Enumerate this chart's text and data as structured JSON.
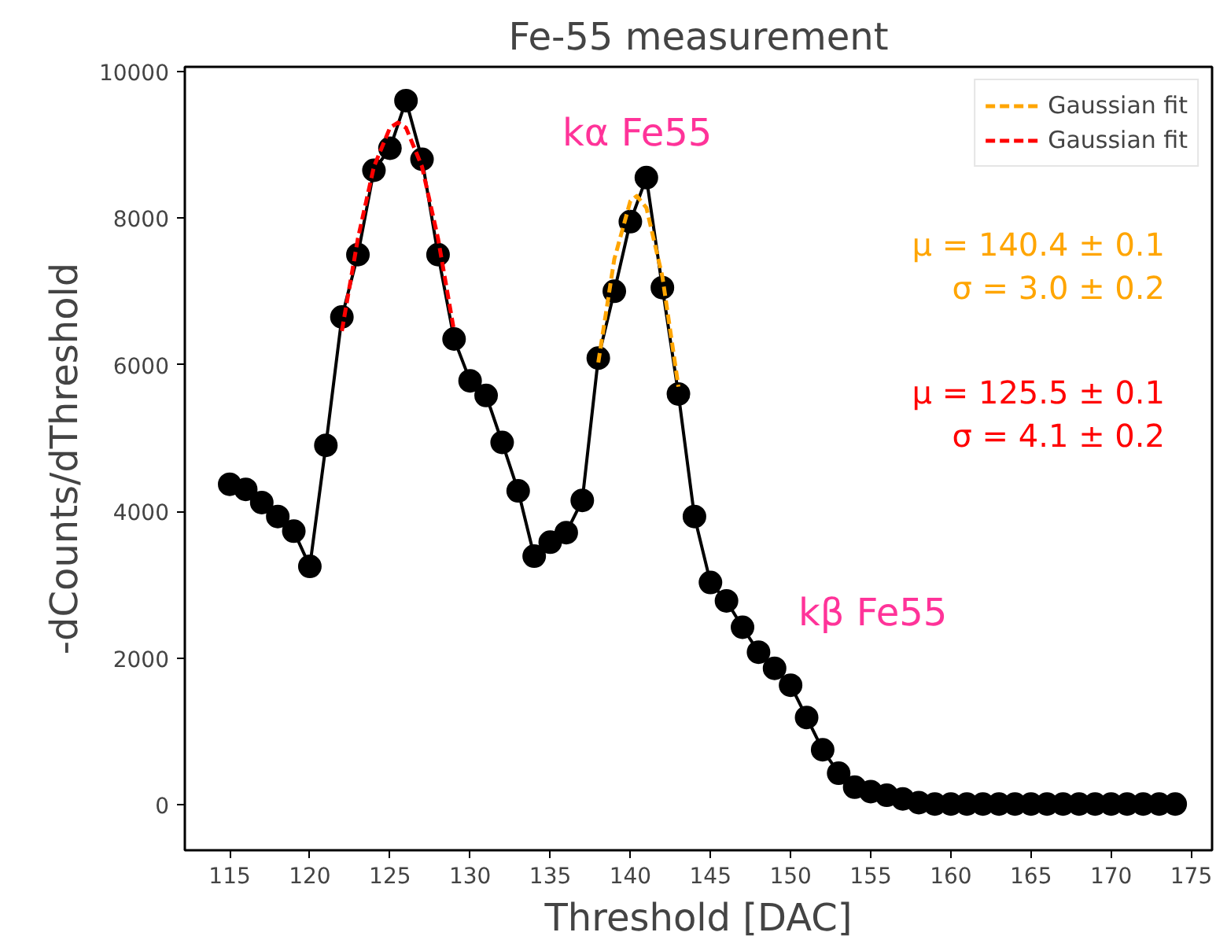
{
  "chart_data": {
    "type": "line",
    "title": "Fe-55 measurement",
    "xlabel": "Threshold [DAC]",
    "ylabel": "-dCounts/dThreshold",
    "x": [
      115,
      116,
      117,
      118,
      119,
      120,
      121,
      122,
      123,
      124,
      125,
      126,
      127,
      128,
      129,
      130,
      131,
      132,
      133,
      134,
      135,
      136,
      137,
      138,
      139,
      140,
      141,
      142,
      143,
      144,
      145,
      146,
      147,
      148,
      149,
      150,
      151,
      152,
      153,
      154,
      155,
      156,
      157,
      158,
      159,
      160,
      161,
      162,
      163,
      164,
      165,
      166,
      167,
      168,
      169,
      170,
      171,
      172,
      173,
      174
    ],
    "series": [
      {
        "color": "#000000",
        "marker": "circle",
        "line_style": "solid",
        "values": [
          4370,
          4300,
          4120,
          3930,
          3730,
          3250,
          4900,
          6650,
          7500,
          8650,
          8950,
          9600,
          8800,
          7500,
          6350,
          5780,
          5580,
          4940,
          4280,
          3390,
          3580,
          3710,
          4150,
          6090,
          7000,
          7950,
          8550,
          7050,
          5600,
          3930,
          3030,
          2780,
          2420,
          2080,
          1860,
          1630,
          1190,
          750,
          430,
          240,
          180,
          130,
          80,
          30,
          10,
          10,
          10,
          10,
          10,
          10,
          10,
          10,
          10,
          10,
          10,
          10,
          10,
          10,
          10,
          10
        ]
      },
      {
        "name": "Gaussian fit",
        "color": "#ffa500",
        "marker": "none",
        "line_style": "dashed",
        "x": [
          138,
          139,
          140,
          140.4,
          141,
          142,
          143
        ],
        "values": [
          6030,
          7440,
          8230,
          8300,
          8140,
          7200,
          5700
        ]
      },
      {
        "name": "Gaussian fit",
        "color": "#ff0000",
        "marker": "none",
        "line_style": "dashed",
        "x": [
          122,
          123,
          124,
          125,
          125.5,
          126,
          127,
          128,
          129
        ],
        "values": [
          6460,
          7720,
          8700,
          9230,
          9300,
          9230,
          8700,
          7720,
          6460
        ]
      }
    ],
    "xlim": [
      112.2,
      176.3
    ],
    "ylim": [
      -620,
      10060
    ],
    "xticks": [
      115,
      120,
      125,
      130,
      135,
      140,
      145,
      150,
      155,
      160,
      165,
      170,
      175
    ],
    "yticks": [
      0,
      2000,
      4000,
      6000,
      8000,
      10000
    ],
    "grid": false,
    "legend": "top right",
    "annotations": [
      "kα Fe55",
      "kβ Fe55",
      "μ = 140.4 ± 0.1\nσ = 3.0 ± 0.2",
      "μ = 125.5 ± 0.1\nσ = 4.1 ± 0.2"
    ]
  }
}
